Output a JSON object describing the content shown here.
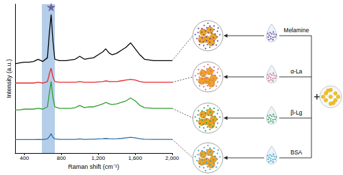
{
  "chart_data": {
    "type": "line",
    "x_label": "Raman shift (cm⁻¹)",
    "y_label": "Intensity (a.u.)",
    "x": [
      300,
      350,
      400,
      450,
      500,
      550,
      600,
      650,
      670,
      690,
      710,
      730,
      780,
      850,
      900,
      950,
      1000,
      1050,
      1100,
      1150,
      1200,
      1250,
      1280,
      1320,
      1350,
      1400,
      1450,
      1500,
      1550,
      1600,
      1650,
      1700,
      1800,
      1900,
      2000
    ],
    "series": [
      {
        "color": "#000000",
        "values": [
          60,
          60.5,
          61,
          61,
          61.5,
          63,
          61.5,
          64,
          80,
          93,
          75,
          63,
          62,
          62,
          62.5,
          63,
          65,
          63,
          63.5,
          64,
          66,
          68,
          70,
          67,
          66,
          67,
          69,
          71,
          74,
          70,
          66,
          63,
          62,
          62,
          62
        ]
      },
      {
        "color": "#e8262a",
        "values": [
          47,
          47,
          47,
          47,
          47,
          47.5,
          47,
          48,
          53,
          57,
          51,
          48,
          47.5,
          47.5,
          47.5,
          47.5,
          48,
          47.5,
          47.5,
          47.5,
          47.8,
          48,
          48.5,
          48,
          48,
          48,
          48.5,
          49,
          49.5,
          49,
          48,
          47.5,
          47.5,
          47.5,
          47.5
        ]
      },
      {
        "color": "#2aa02a",
        "values": [
          29,
          29,
          29.5,
          29.5,
          29.5,
          30,
          29.5,
          31,
          40,
          48,
          37,
          31,
          30,
          30,
          30,
          30.5,
          32,
          30.5,
          31,
          31,
          32,
          33,
          34,
          33,
          32.5,
          33,
          34,
          35,
          37,
          35,
          32,
          30.5,
          30,
          30,
          30
        ]
      },
      {
        "color": "#2e6da4",
        "values": [
          9,
          9,
          9,
          9,
          9,
          9.2,
          9,
          9.5,
          11,
          13,
          10.5,
          9.5,
          9.2,
          9.2,
          9.2,
          9.2,
          9.5,
          9.2,
          9.3,
          9.3,
          9.5,
          9.6,
          9.8,
          9.6,
          9.5,
          9.6,
          9.8,
          10.2,
          10.5,
          10.2,
          9.6,
          9.3,
          9.2,
          9.2,
          9.2
        ]
      }
    ],
    "xlim": [
      300,
      2000
    ],
    "xticks": [
      400,
      800,
      1200,
      1600,
      2000
    ],
    "ylim": [
      0,
      100
    ],
    "tick_labels": "x",
    "grid": false,
    "highlight": {
      "xrange": [
        590,
        730
      ],
      "color": "#a7c4e4"
    },
    "star": {
      "x": 690,
      "y": 98,
      "color": "#5b4a8b"
    }
  },
  "diagram": {
    "samples": [
      {
        "label": "Melamine",
        "color": "#6a4fa0"
      },
      {
        "label": "α-La",
        "color": "#e06a8a"
      },
      {
        "label": "β-Lg",
        "color": "#3aa048"
      },
      {
        "label": "BSA",
        "color": "#3aa6c8"
      }
    ],
    "nanoparticle_color": "#f2c21a"
  }
}
